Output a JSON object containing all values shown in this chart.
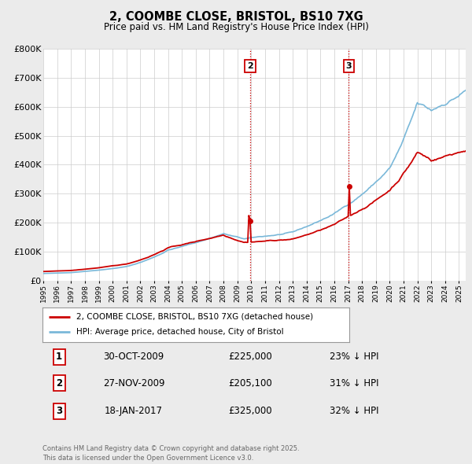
{
  "title": "2, COOMBE CLOSE, BRISTOL, BS10 7XG",
  "subtitle": "Price paid vs. HM Land Registry's House Price Index (HPI)",
  "ylim": [
    0,
    800000
  ],
  "yticks": [
    0,
    100000,
    200000,
    300000,
    400000,
    500000,
    600000,
    700000,
    800000
  ],
  "ytick_labels": [
    "£0",
    "£100K",
    "£200K",
    "£300K",
    "£400K",
    "£500K",
    "£600K",
    "£700K",
    "£800K"
  ],
  "hpi_color": "#7ab8d9",
  "price_color": "#cc0000",
  "vline_color": "#cc0000",
  "bg_color": "#ebebeb",
  "plot_bg_color": "#ffffff",
  "grid_color": "#cccccc",
  "xmin": 1995,
  "xmax": 2025.5,
  "transaction1": {
    "date": "30-OCT-2009",
    "price": 225000,
    "price_str": "£225,000",
    "hpi_pct": "23%",
    "x": 2009.83
  },
  "transaction2": {
    "date": "27-NOV-2009",
    "price": 205100,
    "price_str": "£205,100",
    "hpi_pct": "31%",
    "x": 2009.92
  },
  "transaction3": {
    "date": "18-JAN-2017",
    "price": 325000,
    "price_str": "£325,000",
    "hpi_pct": "32%",
    "x": 2017.05
  },
  "vline2_x": 2009.92,
  "vline3_x": 2017.05,
  "legend_line1": "2, COOMBE CLOSE, BRISTOL, BS10 7XG (detached house)",
  "legend_line2": "HPI: Average price, detached house, City of Bristol",
  "footer1": "Contains HM Land Registry data © Crown copyright and database right 2025.",
  "footer2": "This data is licensed under the Open Government Licence v3.0."
}
